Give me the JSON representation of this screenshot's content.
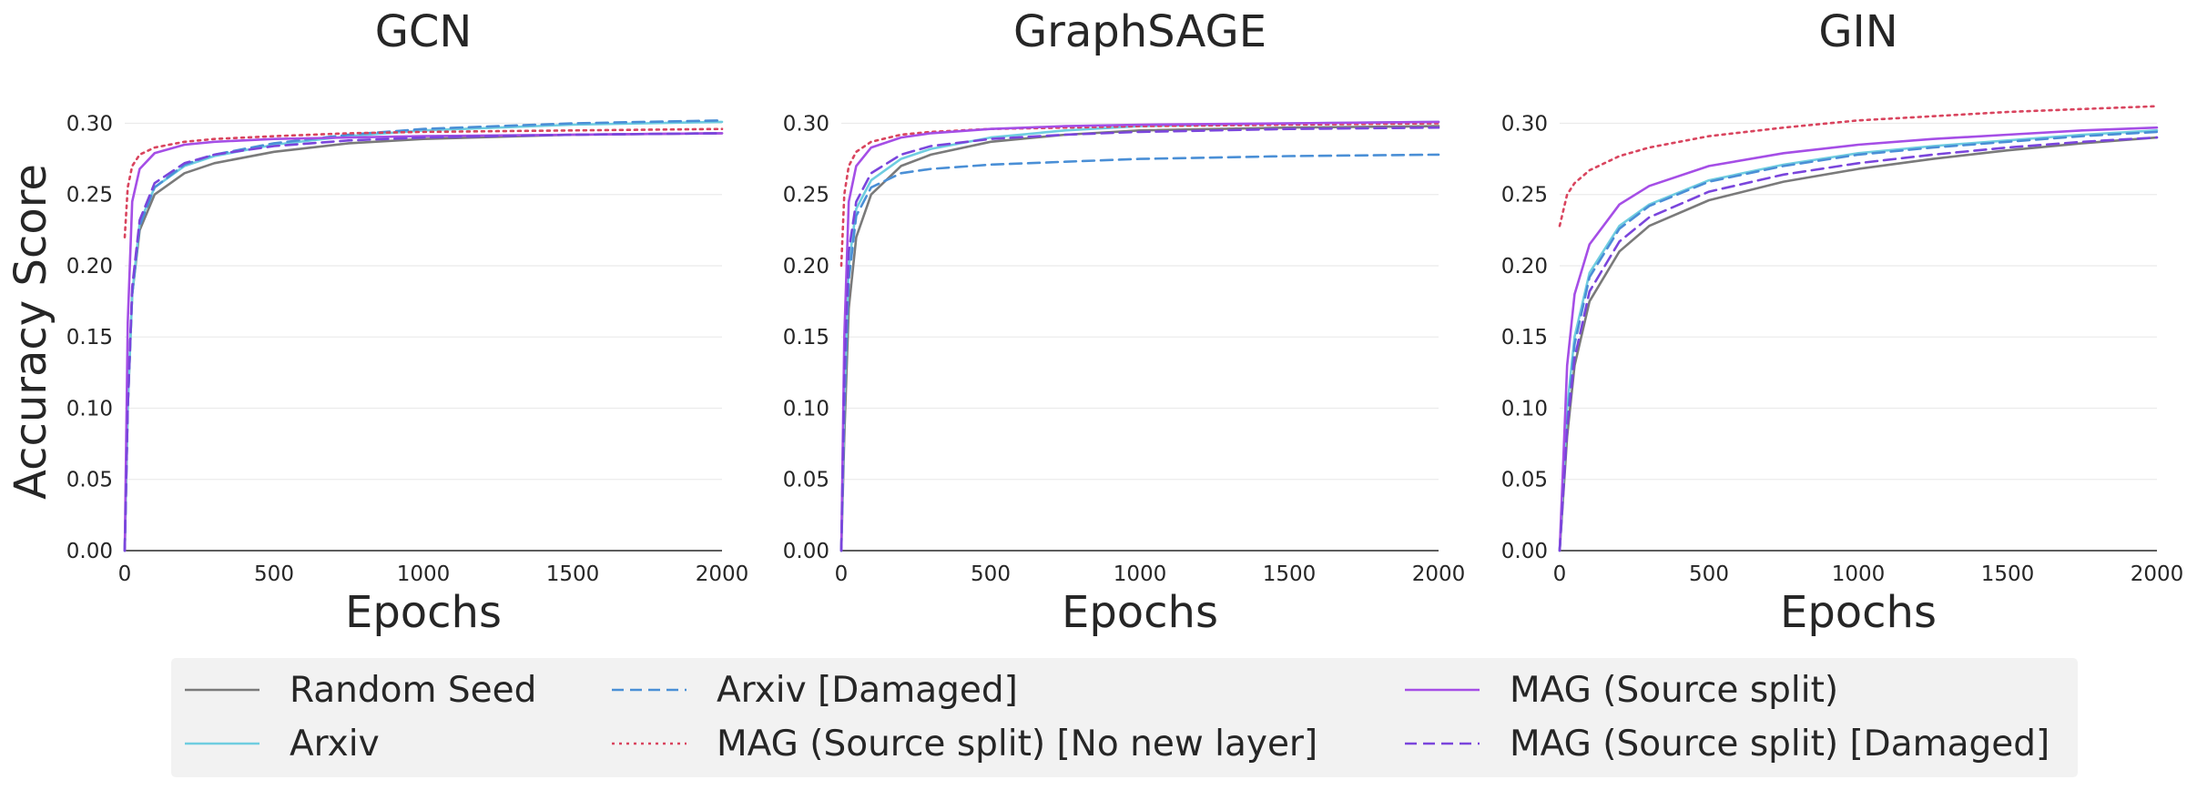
{
  "chart_data": [
    {
      "type": "line",
      "title": "GCN",
      "xlabel": "Epochs",
      "ylabel": "Accuracy Score",
      "xlim": [
        0,
        2000
      ],
      "ylim": [
        0,
        0.3
      ],
      "xticks": [
        "0",
        "500",
        "1000",
        "1500",
        "2000"
      ],
      "yticks": [
        "0.00",
        "0.05",
        "0.10",
        "0.15",
        "0.20",
        "0.25",
        "0.30"
      ],
      "grid": "horizontal",
      "series": [
        {
          "name": "Random Seed",
          "x": [
            0,
            10,
            25,
            50,
            100,
            200,
            300,
            500,
            750,
            1000,
            1500,
            2000
          ],
          "y": [
            0.0,
            0.1,
            0.18,
            0.225,
            0.25,
            0.265,
            0.272,
            0.28,
            0.286,
            0.289,
            0.292,
            0.293
          ]
        },
        {
          "name": "Arxiv",
          "x": [
            0,
            10,
            25,
            50,
            100,
            200,
            300,
            500,
            750,
            1000,
            1500,
            2000
          ],
          "y": [
            0.0,
            0.1,
            0.18,
            0.23,
            0.255,
            0.27,
            0.277,
            0.285,
            0.291,
            0.295,
            0.299,
            0.301
          ]
        },
        {
          "name": "Arxiv [Damaged]",
          "x": [
            0,
            10,
            25,
            50,
            100,
            200,
            300,
            500,
            750,
            1000,
            1500,
            2000
          ],
          "y": [
            0.0,
            0.1,
            0.18,
            0.228,
            0.255,
            0.271,
            0.278,
            0.286,
            0.292,
            0.296,
            0.3,
            0.302
          ]
        },
        {
          "name": "MAG (Source split) [No new layer]",
          "x": [
            0,
            10,
            25,
            50,
            100,
            200,
            300,
            500,
            750,
            1000,
            1500,
            2000
          ],
          "y": [
            0.22,
            0.255,
            0.27,
            0.278,
            0.283,
            0.287,
            0.289,
            0.291,
            0.293,
            0.294,
            0.295,
            0.296
          ]
        },
        {
          "name": "MAG (Source split)",
          "x": [
            0,
            10,
            25,
            50,
            100,
            200,
            300,
            500,
            750,
            1000,
            1500,
            2000
          ],
          "y": [
            0.0,
            0.16,
            0.245,
            0.268,
            0.279,
            0.285,
            0.287,
            0.289,
            0.29,
            0.291,
            0.292,
            0.293
          ]
        },
        {
          "name": "MAG (Source split) [Damaged]",
          "x": [
            0,
            10,
            25,
            50,
            100,
            200,
            300,
            500,
            750,
            1000,
            1500,
            2000
          ],
          "y": [
            0.0,
            0.1,
            0.185,
            0.232,
            0.258,
            0.272,
            0.278,
            0.284,
            0.288,
            0.29,
            0.292,
            0.293
          ]
        }
      ]
    },
    {
      "type": "line",
      "title": "GraphSAGE",
      "xlabel": "Epochs",
      "ylabel": "",
      "xlim": [
        0,
        2000
      ],
      "ylim": [
        0,
        0.3
      ],
      "xticks": [
        "0",
        "500",
        "1000",
        "1500",
        "2000"
      ],
      "yticks": [
        "0.00",
        "0.05",
        "0.10",
        "0.15",
        "0.20",
        "0.25",
        "0.30"
      ],
      "grid": "horizontal",
      "series": [
        {
          "name": "Random Seed",
          "x": [
            0,
            10,
            25,
            50,
            100,
            200,
            300,
            500,
            750,
            1000,
            1500,
            2000
          ],
          "y": [
            0.0,
            0.08,
            0.17,
            0.22,
            0.25,
            0.27,
            0.278,
            0.287,
            0.292,
            0.295,
            0.297,
            0.298
          ]
        },
        {
          "name": "Arxiv",
          "x": [
            0,
            10,
            25,
            50,
            100,
            200,
            300,
            500,
            750,
            1000,
            1500,
            2000
          ],
          "y": [
            0.0,
            0.1,
            0.2,
            0.24,
            0.26,
            0.275,
            0.282,
            0.29,
            0.295,
            0.298,
            0.3,
            0.301
          ]
        },
        {
          "name": "Arxiv [Damaged]",
          "x": [
            0,
            10,
            25,
            50,
            100,
            200,
            300,
            500,
            750,
            1000,
            1500,
            2000
          ],
          "y": [
            0.0,
            0.1,
            0.19,
            0.235,
            0.255,
            0.265,
            0.268,
            0.271,
            0.273,
            0.275,
            0.277,
            0.278
          ]
        },
        {
          "name": "MAG (Source split) [No new layer]",
          "x": [
            0,
            10,
            25,
            50,
            100,
            200,
            300,
            500,
            750,
            1000,
            1500,
            2000
          ],
          "y": [
            0.2,
            0.25,
            0.27,
            0.28,
            0.287,
            0.292,
            0.294,
            0.296,
            0.297,
            0.298,
            0.299,
            0.3
          ]
        },
        {
          "name": "MAG (Source split)",
          "x": [
            0,
            10,
            25,
            50,
            100,
            200,
            300,
            500,
            750,
            1000,
            1500,
            2000
          ],
          "y": [
            0.0,
            0.15,
            0.245,
            0.27,
            0.283,
            0.29,
            0.293,
            0.296,
            0.298,
            0.299,
            0.3,
            0.301
          ]
        },
        {
          "name": "MAG (Source split) [Damaged]",
          "x": [
            0,
            10,
            25,
            50,
            100,
            200,
            300,
            500,
            750,
            1000,
            1500,
            2000
          ],
          "y": [
            0.0,
            0.12,
            0.21,
            0.245,
            0.265,
            0.278,
            0.284,
            0.289,
            0.292,
            0.294,
            0.296,
            0.297
          ]
        }
      ]
    },
    {
      "type": "line",
      "title": "GIN",
      "xlabel": "Epochs",
      "ylabel": "",
      "xlim": [
        0,
        2000
      ],
      "ylim": [
        0,
        0.3
      ],
      "xticks": [
        "0",
        "500",
        "1000",
        "1500",
        "2000"
      ],
      "yticks": [
        "0.00",
        "0.05",
        "0.10",
        "0.15",
        "0.20",
        "0.25",
        "0.30"
      ],
      "grid": "horizontal",
      "series": [
        {
          "name": "Random Seed",
          "x": [
            0,
            25,
            50,
            100,
            200,
            300,
            500,
            750,
            1000,
            1250,
            1500,
            1750,
            2000
          ],
          "y": [
            0.0,
            0.08,
            0.13,
            0.175,
            0.21,
            0.228,
            0.246,
            0.259,
            0.268,
            0.275,
            0.281,
            0.286,
            0.29
          ]
        },
        {
          "name": "Arxiv",
          "x": [
            0,
            25,
            50,
            100,
            200,
            300,
            500,
            750,
            1000,
            1250,
            1500,
            1750,
            2000
          ],
          "y": [
            0.0,
            0.1,
            0.15,
            0.195,
            0.228,
            0.243,
            0.26,
            0.271,
            0.279,
            0.284,
            0.288,
            0.292,
            0.295
          ]
        },
        {
          "name": "Arxiv [Damaged]",
          "x": [
            0,
            25,
            50,
            100,
            200,
            300,
            500,
            750,
            1000,
            1250,
            1500,
            1750,
            2000
          ],
          "y": [
            0.0,
            0.09,
            0.145,
            0.192,
            0.226,
            0.242,
            0.259,
            0.27,
            0.278,
            0.283,
            0.287,
            0.291,
            0.294
          ]
        },
        {
          "name": "MAG (Source split) [No new layer]",
          "x": [
            0,
            25,
            50,
            100,
            200,
            300,
            500,
            750,
            1000,
            1250,
            1500,
            1750,
            2000
          ],
          "y": [
            0.228,
            0.25,
            0.258,
            0.267,
            0.277,
            0.283,
            0.291,
            0.297,
            0.302,
            0.305,
            0.308,
            0.31,
            0.312
          ]
        },
        {
          "name": "MAG (Source split)",
          "x": [
            0,
            25,
            50,
            100,
            200,
            300,
            500,
            750,
            1000,
            1250,
            1500,
            1750,
            2000
          ],
          "y": [
            0.0,
            0.13,
            0.18,
            0.215,
            0.243,
            0.256,
            0.27,
            0.279,
            0.285,
            0.289,
            0.292,
            0.295,
            0.297
          ]
        },
        {
          "name": "MAG (Source split) [Damaged]",
          "x": [
            0,
            25,
            50,
            100,
            200,
            300,
            500,
            750,
            1000,
            1250,
            1500,
            1750,
            2000
          ],
          "y": [
            0.0,
            0.085,
            0.135,
            0.182,
            0.217,
            0.234,
            0.252,
            0.264,
            0.272,
            0.278,
            0.283,
            0.287,
            0.29
          ]
        }
      ]
    }
  ],
  "legend": {
    "placement": "bottom",
    "entries": [
      {
        "label": "Random Seed",
        "color": "#7a7a7a",
        "dash": "solid"
      },
      {
        "label": "Arxiv",
        "color": "#6fcde0",
        "dash": "solid"
      },
      {
        "label": "Arxiv [Damaged]",
        "color": "#4a8fd6",
        "dash": "dashed"
      },
      {
        "label": "MAG (Source split) [No new layer]",
        "color": "#d9445e",
        "dash": "dotted"
      },
      {
        "label": "MAG (Source split)",
        "color": "#a54ee6",
        "dash": "solid"
      },
      {
        "label": "MAG (Source split) [Damaged]",
        "color": "#7a45dc",
        "dash": "dashed"
      }
    ]
  },
  "colors": {
    "Random Seed": "#7a7a7a",
    "Arxiv": "#6fcde0",
    "Arxiv [Damaged]": "#4a8fd6",
    "MAG (Source split) [No new layer]": "#d9445e",
    "MAG (Source split)": "#a54ee6",
    "MAG (Source split) [Damaged]": "#7a45dc"
  }
}
